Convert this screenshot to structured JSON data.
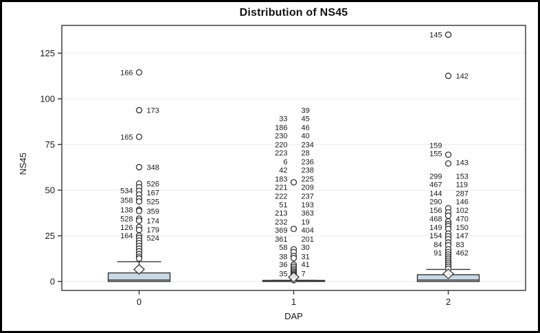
{
  "chart_data": {
    "type": "boxplot",
    "title": "Distribution of NS45",
    "xlabel": "DAP",
    "ylabel": "NS45",
    "ylim": [
      -4.9,
      140.2
    ],
    "yticks": [
      0,
      25,
      50,
      75,
      100,
      125
    ],
    "grid": true,
    "categories": [
      "0",
      "1",
      "2"
    ],
    "colors": {
      "box_fill": "#c8d8e4",
      "line": "#333333",
      "grid": "#ededed",
      "text": "#1a1a1a",
      "marker_fill": "#ffffff"
    },
    "groups": [
      {
        "category": "0",
        "stats": {
          "q1": 0,
          "median": 0.8,
          "q3": 4.7,
          "whisker_low": 0,
          "whisker_high": 10.8,
          "mean": 6.6
        },
        "markers": [
          114.5,
          93.8,
          79.2,
          62.6,
          53.6,
          51.6,
          49.6,
          47.6,
          45.4,
          43.8,
          39.3,
          38.6,
          34.4,
          33.3,
          29.8,
          28.2,
          25.1,
          23.9,
          22.4,
          21.0,
          19.5,
          18.0,
          16.5,
          15.0,
          13.6,
          12.6
        ],
        "labels": [
          {
            "text": "166",
            "side": "left",
            "y": 114.5
          },
          {
            "text": "173",
            "side": "right",
            "y": 93.8
          },
          {
            "text": "165",
            "side": "left",
            "y": 79.2
          },
          {
            "text": "348",
            "side": "right",
            "y": 62.6
          },
          {
            "text": "526",
            "side": "right",
            "y": 53.6
          },
          {
            "text": "534",
            "side": "left",
            "y": 49.8
          },
          {
            "text": "167",
            "side": "right",
            "y": 48.7
          },
          {
            "text": "358",
            "side": "left",
            "y": 44.6
          },
          {
            "text": "525",
            "side": "right",
            "y": 43.8
          },
          {
            "text": "138",
            "side": "left",
            "y": 39.3
          },
          {
            "text": "359",
            "side": "right",
            "y": 38.6
          },
          {
            "text": "528",
            "side": "left",
            "y": 34.4
          },
          {
            "text": "174",
            "side": "right",
            "y": 33.3
          },
          {
            "text": "126",
            "side": "left",
            "y": 29.6
          },
          {
            "text": "179",
            "side": "right",
            "y": 28.4
          },
          {
            "text": "164",
            "side": "left",
            "y": 25.1
          },
          {
            "text": "524",
            "side": "right",
            "y": 23.9
          }
        ]
      },
      {
        "category": "1",
        "stats": {
          "q1": 0,
          "median": 0.1,
          "q3": 0.6,
          "whisker_low": 0,
          "whisker_high": 0.6,
          "mean": 2.4
        },
        "markers": [
          54.3,
          28.8,
          17.6,
          16.1,
          14.0,
          12.8,
          9.2,
          8.1,
          7.0,
          6.1,
          5.3,
          4.6,
          3.9,
          3.3,
          2.8,
          2.3,
          1.8,
          1.4,
          1.0,
          0.7
        ],
        "labels": [
          {
            "text": "39",
            "side": "right",
            "y": 93.8
          },
          {
            "text": "33",
            "side": "left",
            "y": 89.3
          },
          {
            "text": "45",
            "side": "right",
            "y": 89.3
          },
          {
            "text": "186",
            "side": "left",
            "y": 84.4
          },
          {
            "text": "46",
            "side": "right",
            "y": 84.4
          },
          {
            "text": "230",
            "side": "left",
            "y": 79.9
          },
          {
            "text": "40",
            "side": "right",
            "y": 79.9
          },
          {
            "text": "220",
            "side": "left",
            "y": 75.0
          },
          {
            "text": "234",
            "side": "right",
            "y": 75.0
          },
          {
            "text": "223",
            "side": "left",
            "y": 70.5
          },
          {
            "text": "28",
            "side": "right",
            "y": 70.5
          },
          {
            "text": "6",
            "side": "left",
            "y": 65.6
          },
          {
            "text": "236",
            "side": "right",
            "y": 65.6
          },
          {
            "text": "42",
            "side": "left",
            "y": 61.1
          },
          {
            "text": "238",
            "side": "right",
            "y": 61.1
          },
          {
            "text": "183",
            "side": "left",
            "y": 56.2
          },
          {
            "text": "225",
            "side": "right",
            "y": 56.2
          },
          {
            "text": "221",
            "side": "left",
            "y": 51.7
          },
          {
            "text": "209",
            "side": "right",
            "y": 51.7
          },
          {
            "text": "222",
            "side": "left",
            "y": 46.8
          },
          {
            "text": "237",
            "side": "right",
            "y": 46.8
          },
          {
            "text": "51",
            "side": "left",
            "y": 42.0
          },
          {
            "text": "193",
            "side": "right",
            "y": 42.0
          },
          {
            "text": "213",
            "side": "left",
            "y": 37.5
          },
          {
            "text": "363",
            "side": "right",
            "y": 37.5
          },
          {
            "text": "232",
            "side": "left",
            "y": 32.6
          },
          {
            "text": "19",
            "side": "right",
            "y": 32.6
          },
          {
            "text": "369",
            "side": "left",
            "y": 28.1
          },
          {
            "text": "404",
            "side": "right",
            "y": 28.1
          },
          {
            "text": "361",
            "side": "left",
            "y": 23.2
          },
          {
            "text": "201",
            "side": "right",
            "y": 23.2
          },
          {
            "text": "58",
            "side": "left",
            "y": 18.7
          },
          {
            "text": "30",
            "side": "right",
            "y": 18.7
          },
          {
            "text": "38",
            "side": "left",
            "y": 13.8
          },
          {
            "text": "31",
            "side": "right",
            "y": 13.8
          },
          {
            "text": "36",
            "side": "left",
            "y": 9.3
          },
          {
            "text": "41",
            "side": "right",
            "y": 9.3
          },
          {
            "text": "35",
            "side": "left",
            "y": 4.4
          },
          {
            "text": "7",
            "side": "right",
            "y": 4.4
          }
        ]
      },
      {
        "category": "2",
        "stats": {
          "q1": 0,
          "median": 0.8,
          "q3": 3.7,
          "whisker_low": 0,
          "whisker_high": 6.6,
          "mean": 4.2
        },
        "markers": [
          135.1,
          112.6,
          69.4,
          64.6,
          40.1,
          37.8,
          36.0,
          32.9,
          31.4,
          30.3,
          28.8,
          26.2,
          24.7,
          23.2,
          21.3,
          19.8,
          17.6,
          16.1,
          14.8,
          13.6,
          12.5,
          11.4,
          10.3,
          9.2,
          8.1,
          7.0
        ],
        "labels": [
          {
            "text": "145",
            "side": "left",
            "y": 135.1
          },
          {
            "text": "142",
            "side": "right",
            "y": 112.6
          },
          {
            "text": "159",
            "side": "left",
            "y": 74.6
          },
          {
            "text": "155",
            "side": "left",
            "y": 70.1
          },
          {
            "text": "143",
            "side": "right",
            "y": 65.3
          },
          {
            "text": "299",
            "side": "left",
            "y": 57.7
          },
          {
            "text": "153",
            "side": "right",
            "y": 57.7
          },
          {
            "text": "467",
            "side": "left",
            "y": 53.2
          },
          {
            "text": "119",
            "side": "right",
            "y": 53.2
          },
          {
            "text": "144",
            "side": "left",
            "y": 48.3
          },
          {
            "text": "287",
            "side": "right",
            "y": 48.3
          },
          {
            "text": "290",
            "side": "left",
            "y": 43.8
          },
          {
            "text": "146",
            "side": "right",
            "y": 43.8
          },
          {
            "text": "156",
            "side": "left",
            "y": 39.0
          },
          {
            "text": "102",
            "side": "right",
            "y": 39.0
          },
          {
            "text": "468",
            "side": "left",
            "y": 34.4
          },
          {
            "text": "470",
            "side": "right",
            "y": 34.4
          },
          {
            "text": "149",
            "side": "left",
            "y": 29.6
          },
          {
            "text": "150",
            "side": "right",
            "y": 29.6
          },
          {
            "text": "154",
            "side": "left",
            "y": 25.1
          },
          {
            "text": "147",
            "side": "right",
            "y": 25.1
          },
          {
            "text": "84",
            "side": "left",
            "y": 20.2
          },
          {
            "text": "83",
            "side": "right",
            "y": 20.2
          },
          {
            "text": "91",
            "side": "left",
            "y": 15.7
          },
          {
            "text": "462",
            "side": "right",
            "y": 15.7
          }
        ]
      }
    ]
  }
}
